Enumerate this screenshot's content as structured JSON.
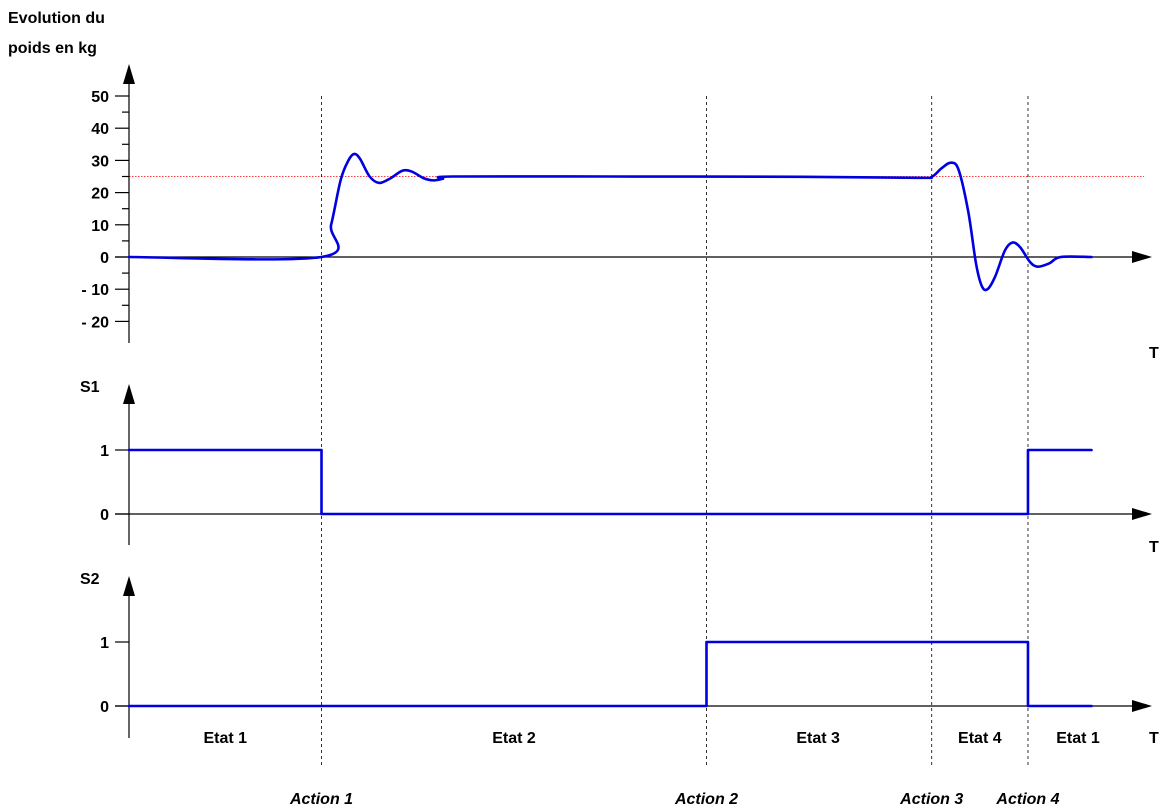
{
  "colors": {
    "signal": "#0000e0",
    "reference": "#ff0000",
    "axis": "#000000"
  },
  "chart_data": [
    {
      "type": "line",
      "ylabel": "Evolution du poids en kg",
      "xlabel": "T",
      "ylim": [
        -25,
        55
      ],
      "yticks": [
        {
          "value": 50,
          "label": "50"
        },
        {
          "value": 40,
          "label": "40"
        },
        {
          "value": 30,
          "label": "30"
        },
        {
          "value": 20,
          "label": "20"
        },
        {
          "value": 10,
          "label": "10"
        },
        {
          "value": 0,
          "label": "0"
        },
        {
          "value": -10,
          "label": "- 10"
        },
        {
          "value": -20,
          "label": "- 20"
        }
      ],
      "reference_line": 25,
      "series": [
        {
          "points": [
            [
              0,
              0
            ],
            [
              1,
              0
            ],
            [
              1.05,
              10
            ],
            [
              1.1,
              24
            ],
            [
              1.14,
              30
            ],
            [
              1.17,
              32
            ],
            [
              1.2,
              30.5
            ],
            [
              1.25,
              25
            ],
            [
              1.3,
              23
            ],
            [
              1.36,
              24.5
            ],
            [
              1.42,
              26.8
            ],
            [
              1.47,
              26.5
            ],
            [
              1.53,
              24.5
            ],
            [
              1.58,
              23.8
            ],
            [
              1.63,
              24.3
            ],
            [
              1.68,
              25
            ],
            [
              2.5,
              25
            ],
            [
              3.5,
              24.9
            ],
            [
              4.1,
              24.6
            ],
            [
              4.17,
              24.9
            ],
            [
              4.22,
              27.5
            ],
            [
              4.27,
              29.3
            ],
            [
              4.31,
              27
            ],
            [
              4.36,
              14
            ],
            [
              4.4,
              -2
            ],
            [
              4.43,
              -9
            ],
            [
              4.46,
              -10
            ],
            [
              4.5,
              -6
            ],
            [
              4.55,
              2
            ],
            [
              4.59,
              4.5
            ],
            [
              4.63,
              3
            ],
            [
              4.68,
              -1.5
            ],
            [
              4.72,
              -3
            ],
            [
              4.78,
              -2
            ],
            [
              4.84,
              0
            ],
            [
              5.0,
              0
            ]
          ]
        }
      ]
    },
    {
      "type": "line",
      "ylabel": "S1",
      "xlabel": "T",
      "ylim": [
        -0.5,
        2
      ],
      "yticks": [
        {
          "value": 1,
          "label": "1"
        },
        {
          "value": 0,
          "label": "0"
        }
      ],
      "series": [
        {
          "points": [
            [
              0,
              1
            ],
            [
              1,
              1
            ],
            [
              1,
              0
            ],
            [
              4.67,
              0
            ],
            [
              4.67,
              1
            ],
            [
              5.0,
              1
            ]
          ]
        }
      ]
    },
    {
      "type": "line",
      "ylabel": "S2",
      "xlabel": "T",
      "ylim": [
        -0.5,
        2
      ],
      "yticks": [
        {
          "value": 1,
          "label": "1"
        },
        {
          "value": 0,
          "label": "0"
        }
      ],
      "series": [
        {
          "points": [
            [
              0,
              0
            ],
            [
              3,
              0
            ],
            [
              3,
              1
            ],
            [
              4.67,
              1
            ],
            [
              4.67,
              0
            ],
            [
              5.0,
              0
            ]
          ]
        }
      ]
    }
  ],
  "time_markers": [
    {
      "x": 1,
      "label": "Action 1"
    },
    {
      "x": 3,
      "label": "Action 2"
    },
    {
      "x": 4.17,
      "label": "Action 3"
    },
    {
      "x": 4.67,
      "label": "Action 4"
    }
  ],
  "states": [
    {
      "center": 0.5,
      "label": "Etat 1"
    },
    {
      "center": 2,
      "label": "Etat 2"
    },
    {
      "center": 3.58,
      "label": "Etat 3"
    },
    {
      "center": 4.42,
      "label": "Etat 4"
    },
    {
      "center": 4.93,
      "label": "Etat 1"
    }
  ]
}
